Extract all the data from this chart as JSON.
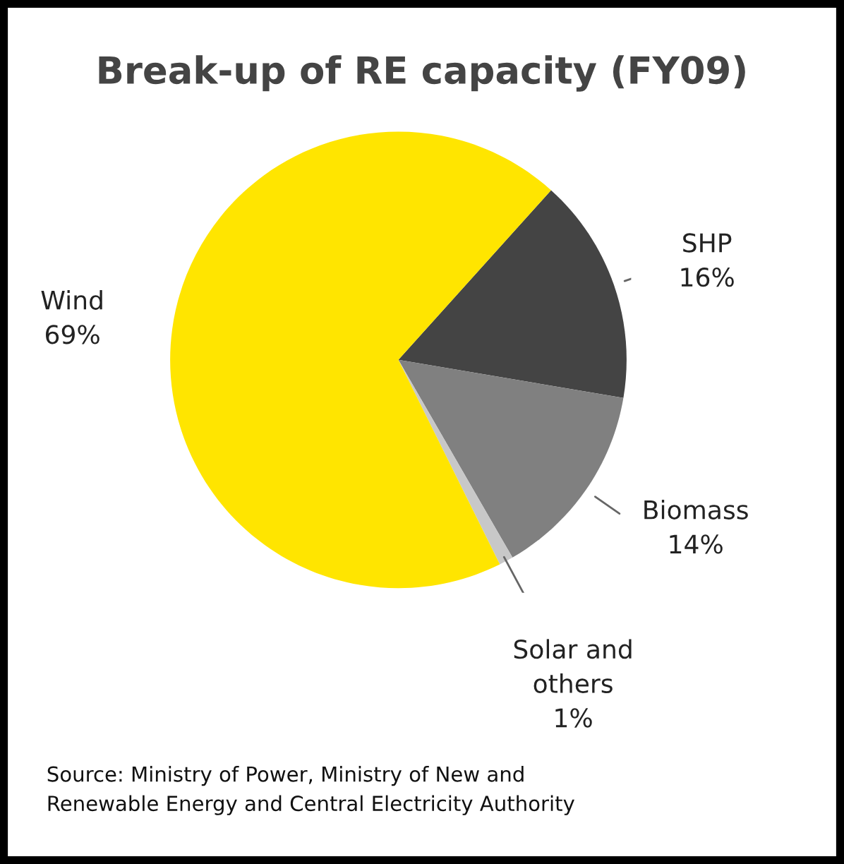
{
  "chart_data": {
    "type": "pie",
    "title": "Break-up of RE capacity (FY09)",
    "categories": [
      "SHP",
      "Biomass",
      "Solar and\nothers",
      "Wind"
    ],
    "values": [
      16,
      14,
      1,
      69
    ],
    "colors": [
      "#444444",
      "#808080",
      "#c8c8c8",
      "#ffe500"
    ],
    "value_labels": [
      "16%",
      "14%",
      "1%",
      "69%"
    ],
    "annotations": [
      "Source: Ministry of Power, Ministry of New and\nRenewable Energy and Central Electricity Authority"
    ]
  }
}
